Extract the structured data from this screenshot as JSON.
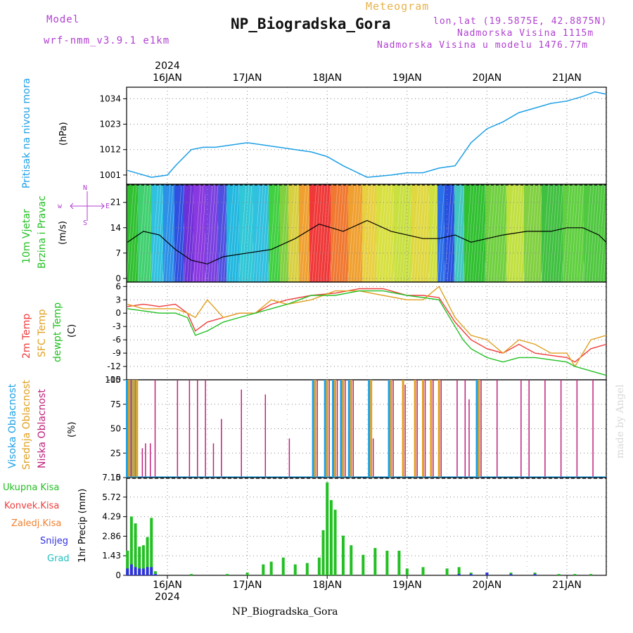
{
  "header": {
    "model_label": "Model",
    "model_name": "wrf-nmm_v3.9.1 e1km",
    "meteogram_label": "Meteogram",
    "station_title": "NP_Biogradska_Gora",
    "lonlat": "lon,lat (19.5875E, 42.8875N)",
    "elevation": "Nadmorska Visina 1115m",
    "model_elevation": "Nadmorska Visina u modelu 1476.77m"
  },
  "footer": {
    "station": "NP_Biogradska_Gora"
  },
  "watermark": "made by Angel",
  "axes": {
    "year": "2024",
    "day_labels": [
      "16JAN",
      "17JAN",
      "18JAN",
      "19JAN",
      "20JAN",
      "21JAN"
    ],
    "day_positions": [
      1,
      2,
      3,
      4,
      5,
      6
    ]
  },
  "panels": {
    "pressure": {
      "label": "Pritisak na nivou mora",
      "unit": "(hPa)",
      "color": "#1ea0e6"
    },
    "wind": {
      "label1": "10m Vjetar",
      "label2": "Brzina i Pravac",
      "unit": "(m/s)",
      "compass_w": "w",
      "compass_e": "E",
      "compass_n": "N",
      "compass_s": "S",
      "color": "#22c022"
    },
    "temp": {
      "label1": "2m Temp",
      "label2": "SFC Temp",
      "label3": "dewpt Temp",
      "unit": "(C)",
      "c1": "#f03c3c",
      "c2": "#e0a020",
      "c3": "#22c022"
    },
    "cloud": {
      "label1": "Visoka Oblacnost",
      "label2": "Srednja Oblacnost",
      "label3": "Niska Oblacnost",
      "unit": "(%)",
      "c1": "#1ea0e6",
      "c2": "#e0a020",
      "c3": "#c0207a"
    },
    "precip": {
      "unit": "1hr Precip (mm)",
      "legend": [
        {
          "label": "Ukupna Kisa",
          "color": "#22c022"
        },
        {
          "label": "Konvek.Kisa",
          "color": "#f03c3c"
        },
        {
          "label": "Zaledj.Kisa",
          "color": "#f08030"
        },
        {
          "label": "Snijeg",
          "color": "#3030e0"
        },
        {
          "label": "Grad",
          "color": "#20c0c0"
        }
      ]
    }
  },
  "chart_data": [
    {
      "type": "line",
      "title": "Pritisak na nivou mora",
      "ylabel": "(hPa)",
      "ylim": [
        997,
        1039
      ],
      "yticks": [
        1001,
        1012,
        1023,
        1034
      ],
      "x": [
        0.5,
        0.8,
        1.0,
        1.1,
        1.3,
        1.45,
        1.6,
        1.8,
        2.0,
        2.2,
        2.4,
        2.6,
        2.8,
        3.0,
        3.2,
        3.5,
        3.8,
        4.0,
        4.2,
        4.4,
        4.6,
        4.8,
        5.0,
        5.2,
        5.4,
        5.6,
        5.8,
        6.0,
        6.2,
        6.35,
        6.5
      ],
      "series": [
        {
          "values": [
            1003,
            1000,
            1001,
            1005,
            1012,
            1013,
            1013,
            1014,
            1015,
            1014,
            1013,
            1012,
            1011,
            1009,
            1005,
            1000,
            1001,
            1002,
            1002,
            1004,
            1005,
            1015,
            1021,
            1024,
            1028,
            1030,
            1032,
            1033,
            1035,
            1037,
            1036
          ]
        }
      ]
    },
    {
      "type": "line",
      "title": "10m Vjetar Brzina i Pravac",
      "ylabel": "(m/s)",
      "ylim": [
        -1,
        26
      ],
      "yticks": [
        0,
        7,
        14,
        21
      ],
      "x": [
        0.5,
        0.7,
        0.9,
        1.1,
        1.3,
        1.5,
        1.7,
        2.0,
        2.3,
        2.6,
        2.9,
        3.2,
        3.5,
        3.8,
        4.0,
        4.2,
        4.4,
        4.6,
        4.8,
        5.0,
        5.2,
        5.5,
        5.8,
        6.0,
        6.2,
        6.4,
        6.5
      ],
      "series": [
        {
          "values": [
            10,
            13,
            12,
            8,
            5,
            4,
            6,
            7,
            8,
            11,
            15,
            13,
            16,
            13,
            12,
            11,
            11,
            12,
            10,
            11,
            12,
            13,
            13,
            14,
            14,
            12,
            10
          ]
        }
      ]
    },
    {
      "type": "line",
      "title": "Temp",
      "ylabel": "(C)",
      "ylim": [
        -15,
        7
      ],
      "yticks": [
        -15,
        -12,
        -9,
        -6,
        -3,
        0,
        3,
        6
      ],
      "x": [
        0.5,
        0.7,
        0.9,
        1.1,
        1.25,
        1.35,
        1.5,
        1.7,
        1.9,
        2.1,
        2.3,
        2.5,
        2.8,
        3.1,
        3.4,
        3.7,
        4.0,
        4.2,
        4.4,
        4.6,
        4.7,
        4.8,
        5.0,
        5.2,
        5.4,
        5.6,
        5.8,
        6.0,
        6.1,
        6.3,
        6.5
      ],
      "series": [
        {
          "name": "2m Temp",
          "values": [
            1.5,
            2,
            1.5,
            2,
            0,
            -4,
            -2,
            -1,
            0,
            0,
            2,
            3,
            4,
            4.5,
            5.5,
            5.5,
            4,
            4,
            3.5,
            -2,
            -4,
            -6,
            -8,
            -9,
            -7,
            -9,
            -9.5,
            -10,
            -11,
            -8,
            -7
          ]
        },
        {
          "name": "SFC Temp",
          "values": [
            2,
            1,
            1,
            1,
            0,
            -1,
            3,
            -1,
            0,
            0,
            3,
            2,
            3,
            5,
            5,
            4,
            3,
            3,
            6,
            -1,
            -3,
            -5,
            -6,
            -9,
            -6,
            -7,
            -9,
            -9,
            -12,
            -6,
            -5
          ]
        },
        {
          "name": "dewpt Temp",
          "values": [
            1,
            0.5,
            0,
            0,
            -1,
            -5,
            -4,
            -2,
            -1,
            0,
            1,
            2,
            4,
            4,
            5,
            5,
            4,
            3.5,
            3,
            -3,
            -6,
            -8,
            -10,
            -11,
            -10,
            -10,
            -10.5,
            -11,
            -12,
            -13,
            -14
          ]
        }
      ]
    },
    {
      "type": "bar",
      "title": "Oblacnost",
      "ylabel": "(%)",
      "ylim": [
        0,
        100
      ],
      "yticks": [
        0,
        25,
        50,
        75,
        100
      ],
      "x": [
        0.52,
        0.55,
        0.58,
        0.62,
        0.66,
        0.7,
        0.76,
        0.82,
        1.1,
        1.25,
        1.35,
        1.45,
        1.55,
        1.65,
        1.9,
        2.2,
        2.5,
        2.85,
        3.0,
        3.1,
        3.2,
        3.3,
        3.55,
        3.8,
        3.95,
        4.1,
        4.2,
        4.3,
        4.4,
        4.6,
        4.7,
        4.75,
        4.9,
        5.1,
        5.4,
        5.5,
        5.7,
        5.9,
        6.1,
        6.3
      ],
      "series": [
        {
          "name": "Visoka Oblacnost",
          "values": [
            100,
            100,
            100,
            100,
            0,
            0,
            0,
            0,
            0,
            0,
            0,
            0,
            0,
            0,
            0,
            0,
            0,
            100,
            100,
            100,
            100,
            100,
            100,
            100,
            0,
            0,
            0,
            0,
            0,
            0,
            0,
            0,
            100,
            0,
            0,
            0,
            0,
            0,
            0,
            0
          ]
        },
        {
          "name": "Srednja Oblacnost",
          "values": [
            100,
            100,
            100,
            100,
            0,
            0,
            0,
            0,
            0,
            0,
            0,
            0,
            0,
            0,
            0,
            0,
            0,
            100,
            100,
            100,
            100,
            100,
            100,
            100,
            100,
            100,
            100,
            100,
            100,
            0,
            0,
            0,
            100,
            0,
            0,
            0,
            0,
            0,
            0,
            0
          ]
        },
        {
          "name": "Niska Oblacnost",
          "values": [
            100,
            0,
            0,
            0,
            30,
            35,
            35,
            100,
            100,
            100,
            100,
            100,
            35,
            60,
            90,
            85,
            40,
            100,
            100,
            100,
            100,
            100,
            40,
            100,
            95,
            100,
            100,
            100,
            100,
            100,
            100,
            80,
            100,
            100,
            100,
            100,
            100,
            100,
            100,
            100
          ]
        }
      ]
    },
    {
      "type": "bar",
      "title": "1hr Precip",
      "ylabel": "1hr Precip (mm)",
      "ylim": [
        0,
        7.15
      ],
      "yticks": [
        0,
        1.43,
        2.86,
        4.29,
        5.72,
        7.15
      ],
      "x": [
        0.5,
        0.55,
        0.6,
        0.65,
        0.7,
        0.75,
        0.8,
        0.85,
        1.3,
        1.75,
        2.0,
        2.2,
        2.3,
        2.45,
        2.6,
        2.75,
        2.9,
        2.95,
        3.0,
        3.05,
        3.1,
        3.2,
        3.3,
        3.45,
        3.6,
        3.75,
        3.9,
        4.0,
        4.2,
        4.5,
        4.65,
        4.8,
        5.0,
        5.3,
        5.6,
        5.9,
        6.1,
        6.3
      ],
      "series": [
        {
          "name": "Ukupna Kisa",
          "values": [
            1.8,
            4.3,
            3.8,
            2.1,
            2.2,
            2.8,
            4.2,
            0.3,
            0.1,
            0.1,
            0.2,
            0.8,
            1.0,
            1.3,
            0.8,
            0.9,
            1.3,
            3.3,
            6.8,
            5.5,
            4.8,
            2.9,
            2.2,
            1.5,
            2.0,
            1.8,
            1.8,
            0.5,
            0.6,
            0.5,
            0.6,
            0.2,
            0.2,
            0.2,
            0.2,
            0.1,
            0.1,
            0.1
          ]
        },
        {
          "name": "Snijeg",
          "values": [
            0.5,
            0.8,
            0.6,
            0.5,
            0.5,
            0.6,
            0.6,
            0.1,
            0,
            0,
            0,
            0,
            0,
            0,
            0,
            0,
            0,
            0,
            0,
            0,
            0,
            0,
            0,
            0,
            0,
            0,
            0,
            0,
            0,
            0,
            0.1,
            0.1,
            0.2,
            0.1,
            0.1,
            0,
            0,
            0
          ]
        }
      ]
    }
  ]
}
